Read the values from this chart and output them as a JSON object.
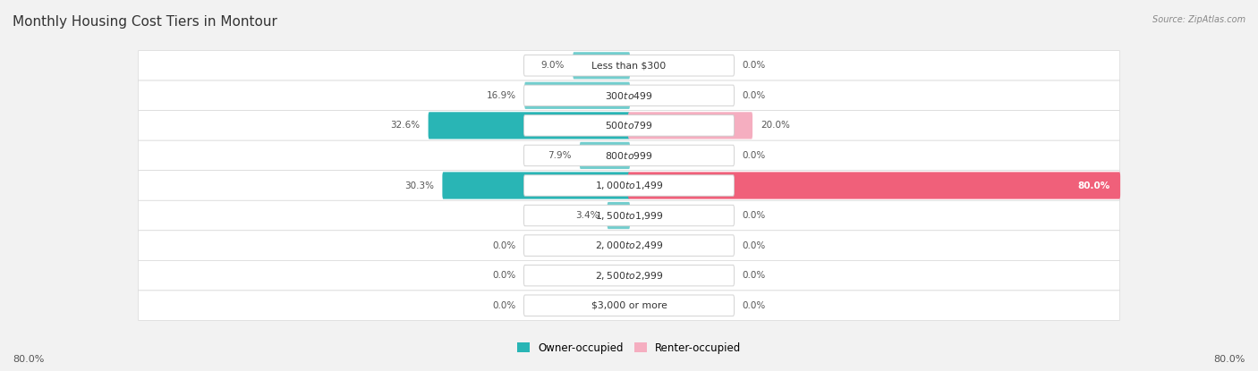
{
  "title": "Monthly Housing Cost Tiers in Montour",
  "source": "Source: ZipAtlas.com",
  "categories": [
    "Less than $300",
    "$300 to $499",
    "$500 to $799",
    "$800 to $999",
    "$1,000 to $1,499",
    "$1,500 to $1,999",
    "$2,000 to $2,499",
    "$2,500 to $2,999",
    "$3,000 or more"
  ],
  "owner_values": [
    9.0,
    16.9,
    32.6,
    7.9,
    30.3,
    3.4,
    0.0,
    0.0,
    0.0
  ],
  "renter_values": [
    0.0,
    0.0,
    20.0,
    0.0,
    80.0,
    0.0,
    0.0,
    0.0,
    0.0
  ],
  "owner_color_dark": "#29b5b5",
  "owner_color_light": "#72cece",
  "renter_color_dark": "#f0607a",
  "renter_color_light": "#f5aec0",
  "row_bg_color": "#ffffff",
  "row_border_color": "#d8d8d8",
  "fig_bg_color": "#f2f2f2",
  "max_value": 80.0,
  "legend_owner": "Owner-occupied",
  "legend_renter": "Renter-occupied",
  "axis_label_left": "80.0%",
  "axis_label_right": "80.0%",
  "title_fontsize": 11,
  "label_fontsize": 7.5,
  "cat_fontsize": 7.8
}
